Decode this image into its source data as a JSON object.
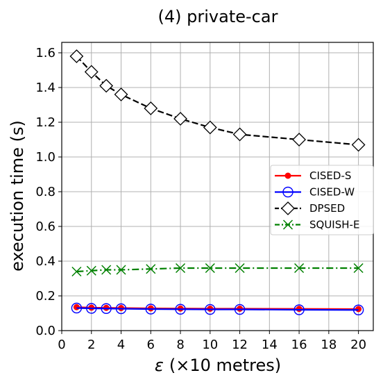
{
  "chart_data": {
    "type": "line",
    "title": "(4) private-car",
    "xlabel_symbol": "ε",
    "xlabel_unit": "(×10 metres)",
    "ylabel": "execution time (s)",
    "xlim": [
      0,
      21
    ],
    "ylim": [
      0,
      1.66
    ],
    "xticks": [
      0,
      2,
      4,
      6,
      8,
      10,
      12,
      14,
      16,
      18,
      20
    ],
    "yticks": [
      0.0,
      0.2,
      0.4,
      0.6,
      0.8,
      1.0,
      1.2,
      1.4,
      1.6
    ],
    "ytick_labels": [
      "0.0",
      "0.2",
      "0.4",
      "0.6",
      "0.8",
      "1.0",
      "1.2",
      "1.4",
      "1.6"
    ],
    "grid": true,
    "legend_position": "center-right",
    "x": [
      1,
      2,
      3,
      4,
      6,
      8,
      10,
      12,
      16,
      20
    ],
    "series": [
      {
        "name": "CISED-S",
        "color": "#ff0000",
        "marker": "dot",
        "line_style": "solid",
        "values": [
          0.135,
          0.132,
          0.131,
          0.13,
          0.128,
          0.127,
          0.126,
          0.126,
          0.125,
          0.124
        ]
      },
      {
        "name": "CISED-W",
        "color": "#0000ff",
        "marker": "circle",
        "line_style": "solid",
        "values": [
          0.13,
          0.128,
          0.127,
          0.126,
          0.124,
          0.123,
          0.122,
          0.122,
          0.12,
          0.119
        ]
      },
      {
        "name": "DPSED",
        "color": "#000000",
        "marker": "diamond",
        "line_style": "dashed",
        "values": [
          1.58,
          1.49,
          1.41,
          1.36,
          1.28,
          1.22,
          1.17,
          1.13,
          1.1,
          1.07
        ]
      },
      {
        "name": "SQUISH-E",
        "color": "#008000",
        "marker": "x",
        "line_style": "dashdot",
        "values": [
          0.34,
          0.345,
          0.35,
          0.35,
          0.355,
          0.36,
          0.36,
          0.36,
          0.36,
          0.36
        ]
      }
    ]
  }
}
